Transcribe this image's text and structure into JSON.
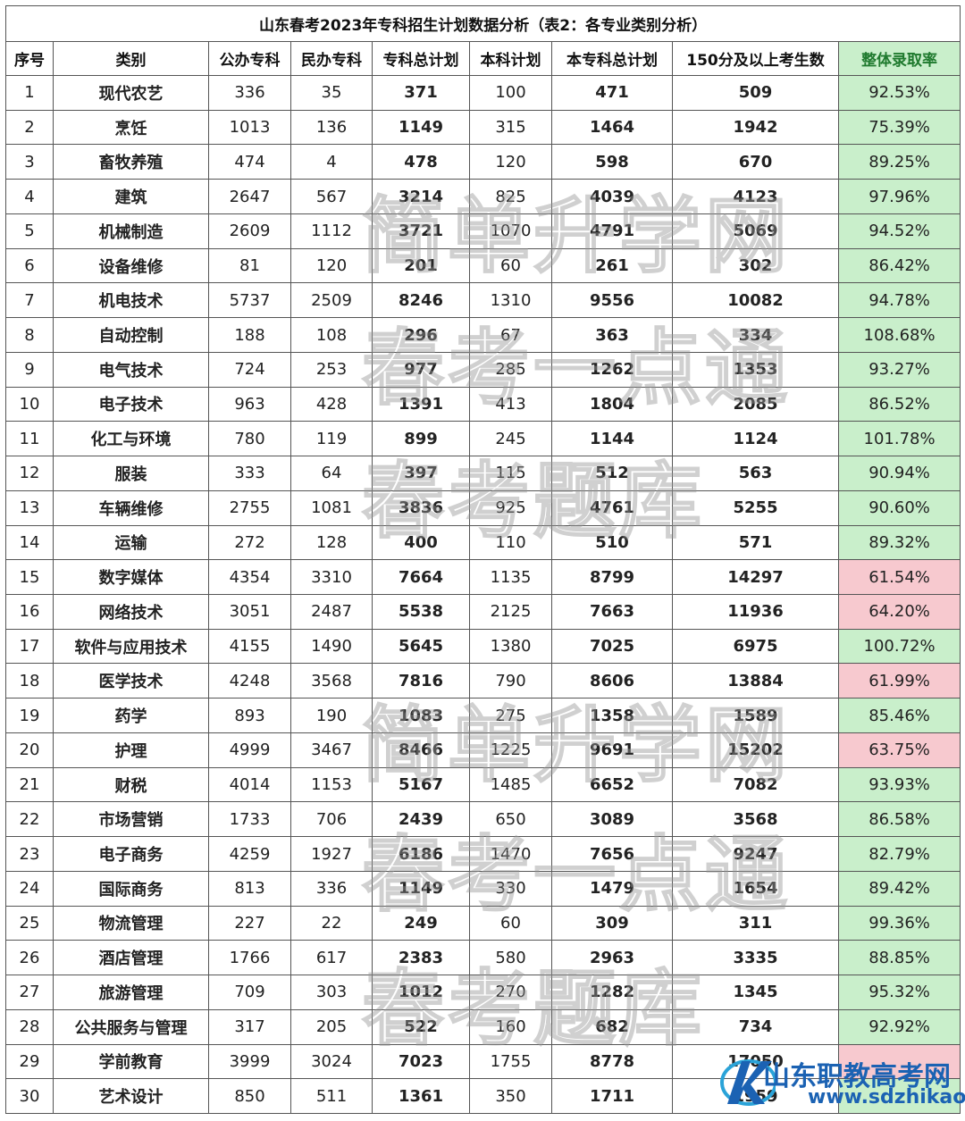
{
  "title": "山东春考2023年专科招生计划数据分析（表2：各专业类别分析）",
  "headers": [
    "序号",
    "类别",
    "公办专科",
    "民办专科",
    "专科总计划",
    "本科计划",
    "本专科总计划",
    "150分及以上考生数",
    "整体录取率"
  ],
  "rows": [
    {
      "no": "1",
      "cat": "现代农艺",
      "pub": "336",
      "pri": "35",
      "total": "371",
      "ben": "100",
      "all": "471",
      "cand": "509",
      "rate": "92.53%",
      "status": "good"
    },
    {
      "no": "2",
      "cat": "烹饪",
      "pub": "1013",
      "pri": "136",
      "total": "1149",
      "ben": "315",
      "all": "1464",
      "cand": "1942",
      "rate": "75.39%",
      "status": "good"
    },
    {
      "no": "3",
      "cat": "畜牧养殖",
      "pub": "474",
      "pri": "4",
      "total": "478",
      "ben": "120",
      "all": "598",
      "cand": "670",
      "rate": "89.25%",
      "status": "good"
    },
    {
      "no": "4",
      "cat": "建筑",
      "pub": "2647",
      "pri": "567",
      "total": "3214",
      "ben": "825",
      "all": "4039",
      "cand": "4123",
      "rate": "97.96%",
      "status": "good"
    },
    {
      "no": "5",
      "cat": "机械制造",
      "pub": "2609",
      "pri": "1112",
      "total": "3721",
      "ben": "1070",
      "all": "4791",
      "cand": "5069",
      "rate": "94.52%",
      "status": "good"
    },
    {
      "no": "6",
      "cat": "设备维修",
      "pub": "81",
      "pri": "120",
      "total": "201",
      "ben": "60",
      "all": "261",
      "cand": "302",
      "rate": "86.42%",
      "status": "good"
    },
    {
      "no": "7",
      "cat": "机电技术",
      "pub": "5737",
      "pri": "2509",
      "total": "8246",
      "ben": "1310",
      "all": "9556",
      "cand": "10082",
      "rate": "94.78%",
      "status": "good"
    },
    {
      "no": "8",
      "cat": "自动控制",
      "pub": "188",
      "pri": "108",
      "total": "296",
      "ben": "67",
      "all": "363",
      "cand": "334",
      "rate": "108.68%",
      "status": "good"
    },
    {
      "no": "9",
      "cat": "电气技术",
      "pub": "724",
      "pri": "253",
      "total": "977",
      "ben": "285",
      "all": "1262",
      "cand": "1353",
      "rate": "93.27%",
      "status": "good"
    },
    {
      "no": "10",
      "cat": "电子技术",
      "pub": "963",
      "pri": "428",
      "total": "1391",
      "ben": "413",
      "all": "1804",
      "cand": "2085",
      "rate": "86.52%",
      "status": "good"
    },
    {
      "no": "11",
      "cat": "化工与环境",
      "pub": "780",
      "pri": "119",
      "total": "899",
      "ben": "245",
      "all": "1144",
      "cand": "1124",
      "rate": "101.78%",
      "status": "good"
    },
    {
      "no": "12",
      "cat": "服装",
      "pub": "333",
      "pri": "64",
      "total": "397",
      "ben": "115",
      "all": "512",
      "cand": "563",
      "rate": "90.94%",
      "status": "good"
    },
    {
      "no": "13",
      "cat": "车辆维修",
      "pub": "2755",
      "pri": "1081",
      "total": "3836",
      "ben": "925",
      "all": "4761",
      "cand": "5255",
      "rate": "90.60%",
      "status": "good"
    },
    {
      "no": "14",
      "cat": "运输",
      "pub": "272",
      "pri": "128",
      "total": "400",
      "ben": "110",
      "all": "510",
      "cand": "571",
      "rate": "89.32%",
      "status": "good"
    },
    {
      "no": "15",
      "cat": "数字媒体",
      "pub": "4354",
      "pri": "3310",
      "total": "7664",
      "ben": "1135",
      "all": "8799",
      "cand": "14297",
      "rate": "61.54%",
      "status": "bad"
    },
    {
      "no": "16",
      "cat": "网络技术",
      "pub": "3051",
      "pri": "2487",
      "total": "5538",
      "ben": "2125",
      "all": "7663",
      "cand": "11936",
      "rate": "64.20%",
      "status": "bad"
    },
    {
      "no": "17",
      "cat": "软件与应用技术",
      "pub": "4155",
      "pri": "1490",
      "total": "5645",
      "ben": "1380",
      "all": "7025",
      "cand": "6975",
      "rate": "100.72%",
      "status": "good"
    },
    {
      "no": "18",
      "cat": "医学技术",
      "pub": "4248",
      "pri": "3568",
      "total": "7816",
      "ben": "790",
      "all": "8606",
      "cand": "13884",
      "rate": "61.99%",
      "status": "bad"
    },
    {
      "no": "19",
      "cat": "药学",
      "pub": "893",
      "pri": "190",
      "total": "1083",
      "ben": "275",
      "all": "1358",
      "cand": "1589",
      "rate": "85.46%",
      "status": "good"
    },
    {
      "no": "20",
      "cat": "护理",
      "pub": "4999",
      "pri": "3467",
      "total": "8466",
      "ben": "1225",
      "all": "9691",
      "cand": "15202",
      "rate": "63.75%",
      "status": "bad"
    },
    {
      "no": "21",
      "cat": "财税",
      "pub": "4014",
      "pri": "1153",
      "total": "5167",
      "ben": "1485",
      "all": "6652",
      "cand": "7082",
      "rate": "93.93%",
      "status": "good"
    },
    {
      "no": "22",
      "cat": "市场营销",
      "pub": "1733",
      "pri": "706",
      "total": "2439",
      "ben": "650",
      "all": "3089",
      "cand": "3568",
      "rate": "86.58%",
      "status": "good"
    },
    {
      "no": "23",
      "cat": "电子商务",
      "pub": "4259",
      "pri": "1927",
      "total": "6186",
      "ben": "1470",
      "all": "7656",
      "cand": "9247",
      "rate": "82.79%",
      "status": "good"
    },
    {
      "no": "24",
      "cat": "国际商务",
      "pub": "813",
      "pri": "336",
      "total": "1149",
      "ben": "330",
      "all": "1479",
      "cand": "1654",
      "rate": "89.42%",
      "status": "good"
    },
    {
      "no": "25",
      "cat": "物流管理",
      "pub": "227",
      "pri": "22",
      "total": "249",
      "ben": "60",
      "all": "309",
      "cand": "311",
      "rate": "99.36%",
      "status": "good"
    },
    {
      "no": "26",
      "cat": "酒店管理",
      "pub": "1766",
      "pri": "617",
      "total": "2383",
      "ben": "580",
      "all": "2963",
      "cand": "3335",
      "rate": "88.85%",
      "status": "good"
    },
    {
      "no": "27",
      "cat": "旅游管理",
      "pub": "709",
      "pri": "303",
      "total": "1012",
      "ben": "270",
      "all": "1282",
      "cand": "1345",
      "rate": "95.32%",
      "status": "good"
    },
    {
      "no": "28",
      "cat": "公共服务与管理",
      "pub": "317",
      "pri": "205",
      "total": "522",
      "ben": "160",
      "all": "682",
      "cand": "734",
      "rate": "92.92%",
      "status": "good"
    },
    {
      "no": "29",
      "cat": "学前教育",
      "pub": "3999",
      "pri": "3024",
      "total": "7023",
      "ben": "1755",
      "all": "8778",
      "cand": "17050",
      "rate": "",
      "status": "bad"
    },
    {
      "no": "30",
      "cat": "艺术设计",
      "pub": "850",
      "pri": "511",
      "total": "1361",
      "ben": "350",
      "all": "1711",
      "cand": "1959",
      "rate": "",
      "status": "good"
    }
  ],
  "watermarks": [
    "简单升学网",
    "春考一点通",
    "春考题库",
    "简单升学网",
    "春考一点通",
    "春考题库"
  ],
  "logo": {
    "name": "山东职教高考网",
    "url": "www.sdzhikao.cn"
  },
  "colors": {
    "blue": "#3d6a99",
    "orange": "#e46e12",
    "teal": "#2b8aa7",
    "rate_good_bg": "#c9efcb",
    "rate_bad_bg": "#f7c9cf"
  }
}
